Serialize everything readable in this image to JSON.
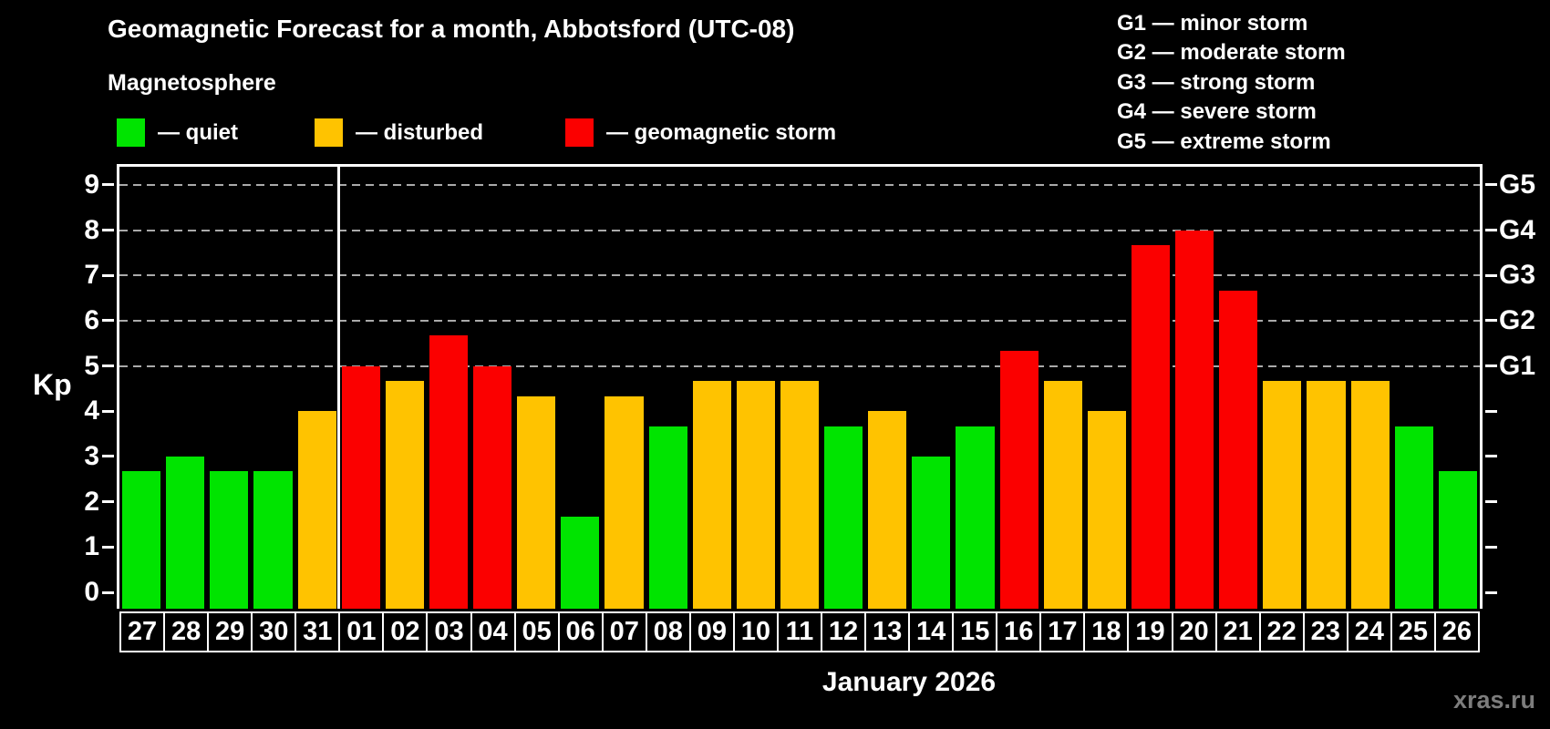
{
  "header": {
    "title": "Geomagnetic Forecast for a month, Abbotsford (UTC-08)",
    "subtitle": "Magnetosphere",
    "legend": [
      {
        "key": "quiet",
        "label": "— quiet",
        "color": "#00E400"
      },
      {
        "key": "disturbed",
        "label": "— disturbed",
        "color": "#FFC300"
      },
      {
        "key": "storm",
        "label": "— geomagnetic storm",
        "color": "#FB0000"
      }
    ],
    "g_scale": [
      {
        "code": "G1",
        "label": "G1 — minor storm"
      },
      {
        "code": "G2",
        "label": "G2 — moderate storm"
      },
      {
        "code": "G3",
        "label": "G3 — strong storm"
      },
      {
        "code": "G4",
        "label": "G4 — severe storm"
      },
      {
        "code": "G5",
        "label": "G5 — extreme storm"
      }
    ]
  },
  "chart_data": {
    "type": "bar",
    "title": "Geomagnetic Forecast for a month, Abbotsford (UTC-08)",
    "ylabel": "Kp",
    "xlabel": "January 2026",
    "ylim": [
      0,
      9
    ],
    "yticks": [
      0,
      1,
      2,
      3,
      4,
      5,
      6,
      7,
      8,
      9
    ],
    "gridlines_at": [
      5,
      6,
      7,
      8,
      9
    ],
    "grid": "dashed horizontal at storm levels only",
    "legend_position": "top-left",
    "month_separator_after_index": 4,
    "categories": [
      "27",
      "28",
      "29",
      "30",
      "31",
      "01",
      "02",
      "03",
      "04",
      "05",
      "06",
      "07",
      "08",
      "09",
      "10",
      "11",
      "12",
      "13",
      "14",
      "15",
      "16",
      "17",
      "18",
      "19",
      "20",
      "21",
      "22",
      "23",
      "24",
      "25",
      "26"
    ],
    "values": [
      2.67,
      3.0,
      2.67,
      2.67,
      4.0,
      5.0,
      4.67,
      5.67,
      5.0,
      4.33,
      1.67,
      4.33,
      3.67,
      4.67,
      4.67,
      4.67,
      3.67,
      4.0,
      3.0,
      3.67,
      5.33,
      4.67,
      4.0,
      7.67,
      8.0,
      6.67,
      4.67,
      4.67,
      4.67,
      3.67,
      2.67
    ],
    "statuses": [
      "quiet",
      "quiet",
      "quiet",
      "quiet",
      "disturbed",
      "storm",
      "disturbed",
      "storm",
      "storm",
      "disturbed",
      "quiet",
      "disturbed",
      "quiet",
      "disturbed",
      "disturbed",
      "disturbed",
      "quiet",
      "disturbed",
      "quiet",
      "quiet",
      "storm",
      "disturbed",
      "disturbed",
      "storm",
      "storm",
      "storm",
      "disturbed",
      "disturbed",
      "disturbed",
      "quiet",
      "quiet"
    ],
    "colors": {
      "quiet": "#00E400",
      "disturbed": "#FFC300",
      "storm": "#FB0000"
    },
    "right_axis": [
      {
        "kp": 5,
        "label": "G1"
      },
      {
        "kp": 6,
        "label": "G2"
      },
      {
        "kp": 7,
        "label": "G3"
      },
      {
        "kp": 8,
        "label": "G4"
      },
      {
        "kp": 9,
        "label": "G5"
      }
    ]
  },
  "footer": {
    "watermark": "xras.ru"
  }
}
